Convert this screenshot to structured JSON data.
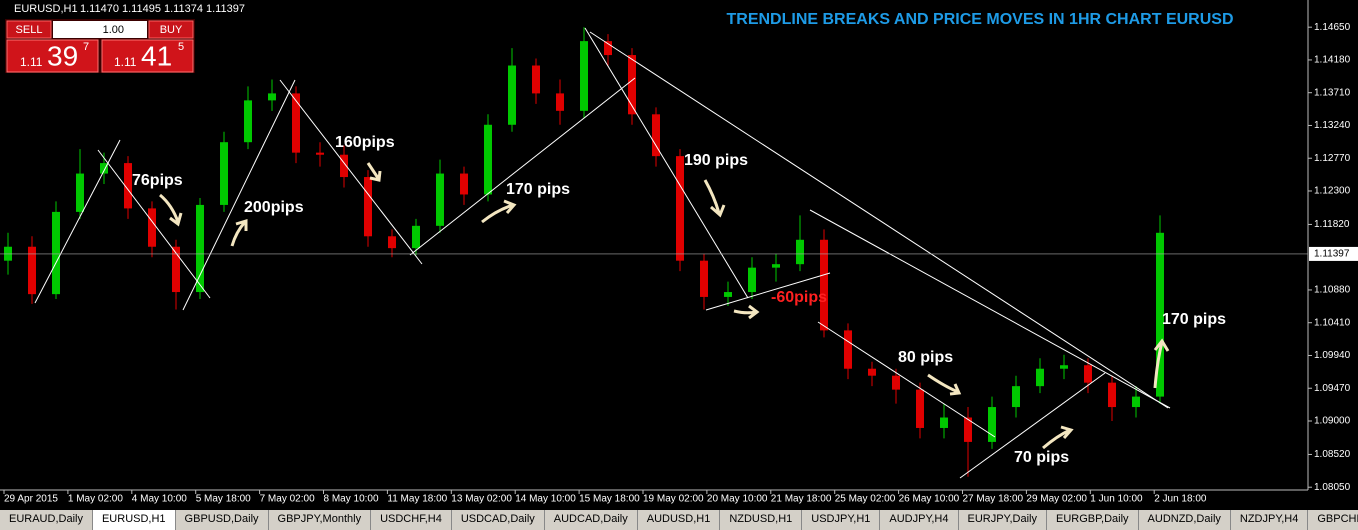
{
  "header": {
    "symbol": "EURUSD,H1",
    "ohlc": "1.11470 1.11495 1.11374 1.11397"
  },
  "trade_panel": {
    "sell": "SELL",
    "lots": "1.00",
    "buy": "BUY",
    "sell_price": {
      "big": "1.11",
      "main": "39",
      "sup": "7"
    },
    "buy_price": {
      "big": "1.11",
      "main": "41",
      "sup": "5"
    }
  },
  "chart_data": {
    "type": "candlestick",
    "title": "TRENDLINE BREAKS AND PRICE MOVES IN 1HR CHART EURUSD",
    "open": [
      1.113,
      1.115,
      1.1082,
      1.12,
      1.1255,
      1.127,
      1.1205,
      1.115,
      1.1085,
      1.121,
      1.13,
      1.136,
      1.137,
      1.1285,
      1.1282,
      1.125,
      1.1165,
      1.1148,
      1.118,
      1.1255,
      1.1225,
      1.1325,
      1.141,
      1.137,
      1.1345,
      1.1445,
      1.1425,
      1.134,
      1.128,
      1.113,
      1.1078,
      1.1085,
      1.112,
      1.1125,
      1.116,
      1.103,
      1.0975,
      1.0965,
      1.0945,
      1.089,
      1.0905,
      1.087,
      1.092,
      1.095,
      1.0975,
      1.098,
      1.0955,
      1.092,
      1.0935
    ],
    "high": [
      1.117,
      1.1165,
      1.1215,
      1.129,
      1.1285,
      1.128,
      1.1215,
      1.116,
      1.122,
      1.1315,
      1.138,
      1.139,
      1.138,
      1.13,
      1.1295,
      1.126,
      1.1175,
      1.119,
      1.1275,
      1.1265,
      1.134,
      1.1435,
      1.142,
      1.139,
      1.1465,
      1.1455,
      1.1435,
      1.135,
      1.129,
      1.114,
      1.11,
      1.1135,
      1.114,
      1.1195,
      1.1175,
      1.104,
      1.0985,
      1.0975,
      1.0955,
      1.0925,
      1.092,
      1.0935,
      1.0965,
      1.099,
      1.0995,
      1.099,
      1.0965,
      1.095,
      1.1195
    ],
    "low": [
      1.111,
      1.1068,
      1.1075,
      1.119,
      1.124,
      1.119,
      1.1135,
      1.106,
      1.1075,
      1.12,
      1.129,
      1.1345,
      1.127,
      1.1265,
      1.1235,
      1.115,
      1.1135,
      1.1138,
      1.117,
      1.121,
      1.1215,
      1.1315,
      1.1355,
      1.1325,
      1.1335,
      1.141,
      1.1325,
      1.1265,
      1.1115,
      1.106,
      1.1065,
      1.1075,
      1.11,
      1.1115,
      1.102,
      1.096,
      1.095,
      1.0925,
      1.0875,
      1.0875,
      1.082,
      1.086,
      1.0905,
      1.094,
      1.096,
      1.094,
      1.09,
      1.0905,
      1.0925
    ],
    "close": [
      1.115,
      1.1082,
      1.12,
      1.1255,
      1.127,
      1.1205,
      1.115,
      1.1085,
      1.121,
      1.13,
      1.136,
      1.137,
      1.1285,
      1.1282,
      1.125,
      1.1165,
      1.1148,
      1.118,
      1.1255,
      1.1225,
      1.1325,
      1.141,
      1.137,
      1.1345,
      1.1445,
      1.1425,
      1.134,
      1.128,
      1.113,
      1.1078,
      1.1085,
      1.112,
      1.1125,
      1.116,
      1.103,
      1.0975,
      1.0965,
      1.0945,
      1.089,
      1.0905,
      1.087,
      1.092,
      1.095,
      1.0975,
      1.098,
      1.0955,
      1.092,
      1.0935,
      1.117
    ],
    "up_color": "#00c800",
    "down_color": "#e00000",
    "ylim": [
      1.0801,
      1.1504
    ],
    "yticks": [
      {
        "value": 1.1465,
        "label": "1.14650"
      },
      {
        "value": 1.1418,
        "label": "1.14180"
      },
      {
        "value": 1.1371,
        "label": "1.13710"
      },
      {
        "value": 1.1324,
        "label": "1.13240"
      },
      {
        "value": 1.1277,
        "label": "1.12770"
      },
      {
        "value": 1.123,
        "label": "1.12300"
      },
      {
        "value": 1.1182,
        "label": "1.11820"
      },
      {
        "value": 1.1088,
        "label": "1.10880"
      },
      {
        "value": 1.1041,
        "label": "1.10410"
      },
      {
        "value": 1.0994,
        "label": "1.09940"
      },
      {
        "value": 1.0947,
        "label": "1.09470"
      },
      {
        "value": 1.09,
        "label": "1.09000"
      },
      {
        "value": 1.0852,
        "label": "1.08520"
      },
      {
        "value": 1.0805,
        "label": "1.08050"
      }
    ],
    "current_price": {
      "value": 1.11397,
      "label": "1.11397"
    },
    "x_labels": [
      "29 Apr 2015",
      "1 May 02:00",
      "4 May 10:00",
      "5 May 18:00",
      "7 May 02:00",
      "8 May 10:00",
      "11 May 18:00",
      "13 May 02:00",
      "14 May 10:00",
      "15 May 18:00",
      "19 May 02:00",
      "20 May 10:00",
      "21 May 18:00",
      "25 May 02:00",
      "26 May 10:00",
      "27 May 18:00",
      "29 May 02:00",
      "1 Jun 10:00",
      "2 Jun 18:00"
    ],
    "annotations": [
      "76pips",
      "200pips",
      "160pips",
      "170 pips",
      "190 pips",
      "-60pips",
      "80 pips",
      "70 pips",
      "170 pips"
    ]
  },
  "tabs": [
    "EURAUD,Daily",
    "EURUSD,H1",
    "GBPUSD,Daily",
    "GBPJPY,Monthly",
    "USDCHF,H4",
    "USDCAD,Daily",
    "AUDCAD,Daily",
    "AUDUSD,H1",
    "NZDUSD,H1",
    "USDJPY,H1",
    "AUDJPY,H4",
    "EURJPY,Daily",
    "EURGBP,Daily",
    "AUDNZD,Daily",
    "NZDJPY,H4",
    "GBPCHF"
  ]
}
